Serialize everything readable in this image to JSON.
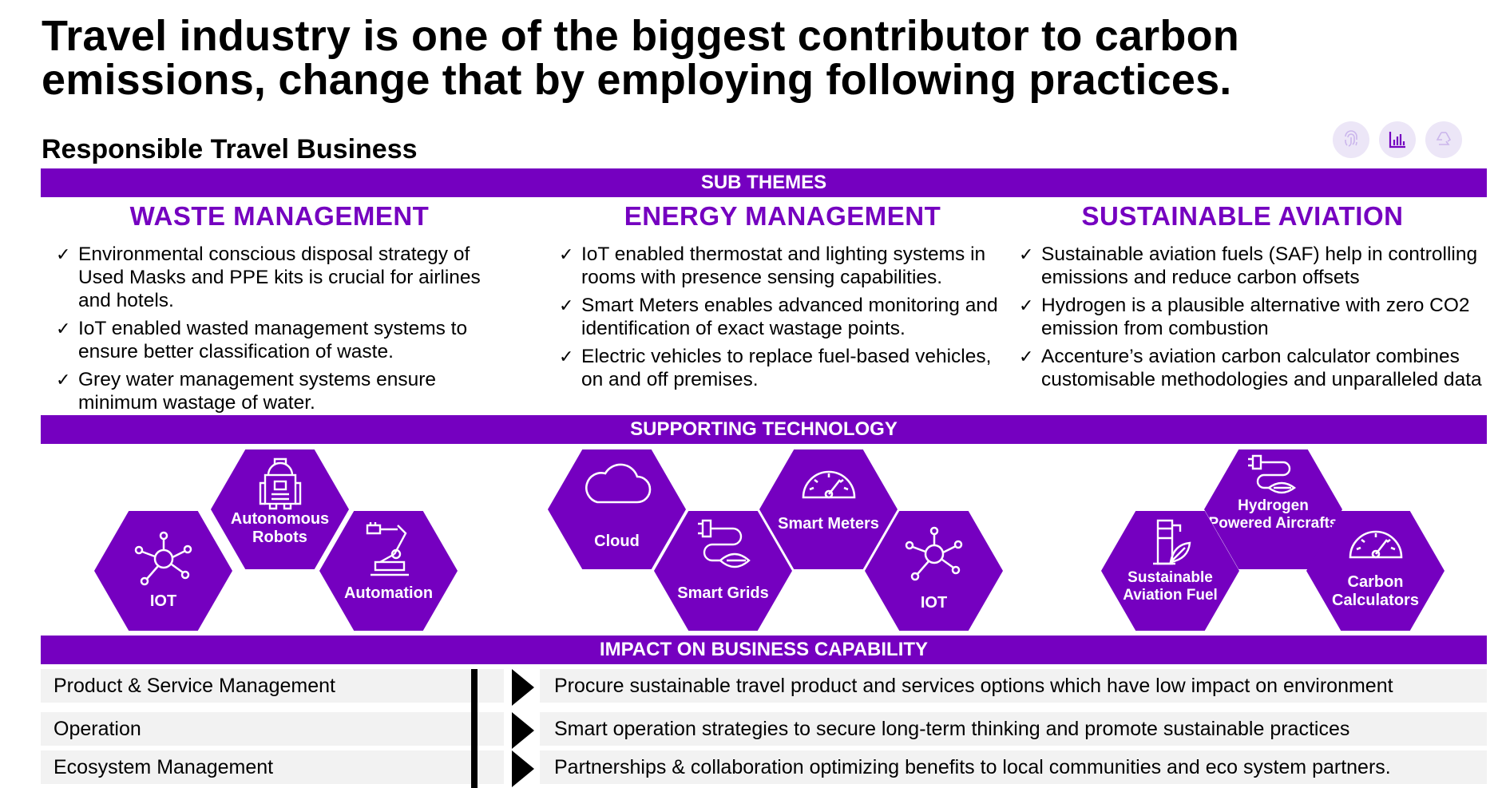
{
  "header": {
    "title_line1": "Travel industry is one of the biggest contributor to carbon",
    "title_line2": "emissions, change that by employing following practices.",
    "section": "Responsible Travel Business"
  },
  "top_icons": [
    "fingerprint-icon",
    "bar-chart-icon",
    "recycle-icon"
  ],
  "colors": {
    "accent": "#7500c0",
    "band_text": "#ffffff",
    "row_bg": "#f2f2f2",
    "icon_bg": "#ece6f7"
  },
  "bands": {
    "sub_themes": "SUB THEMES",
    "supporting_technology": "SUPPORTING TECHNOLOGY",
    "impact": "IMPACT ON BUSINESS CAPABILITY"
  },
  "themes": [
    {
      "title": "WASTE MANAGEMENT",
      "items": [
        "Environmental conscious disposal strategy of Used Masks and PPE kits is crucial for airlines and hotels.",
        "IoT enabled wasted management systems to ensure better classification of waste.",
        "Grey water management systems ensure minimum wastage of water."
      ]
    },
    {
      "title": "ENERGY MANAGEMENT",
      "items": [
        "IoT enabled thermostat and lighting systems in rooms with presence sensing capabilities.",
        "Smart Meters enables advanced monitoring and identification of exact wastage points.",
        "Electric vehicles to replace fuel-based vehicles, on and off premises."
      ]
    },
    {
      "title": "SUSTAINABLE AVIATION",
      "items": [
        "Sustainable aviation fuels (SAF) help in controlling emissions and reduce carbon offsets",
        "Hydrogen is a plausible alternative with zero CO2 emission from combustion",
        "Accenture’s aviation carbon calculator combines customisable methodologies and unparalleled data"
      ]
    }
  ],
  "check_mark": "✓",
  "technologies": {
    "waste": [
      {
        "label": "IOT",
        "icon": "network-hub-icon"
      },
      {
        "label": "Autonomous Robots",
        "icon": "robot-icon"
      },
      {
        "label": "Automation",
        "icon": "robotic-arm-icon"
      }
    ],
    "energy": [
      {
        "label": "Cloud",
        "icon": "cloud-icon"
      },
      {
        "label": "Smart Grids",
        "icon": "plug-leaf-icon"
      },
      {
        "label": "Smart Meters",
        "icon": "gauge-icon"
      },
      {
        "label": "IOT",
        "icon": "network-hub-icon"
      }
    ],
    "aviation": [
      {
        "label": "Sustainable Aviation Fuel",
        "icon": "fuel-leaf-icon"
      },
      {
        "label": "Hydrogen Powered Aircrafts",
        "icon": "plug-leaf-icon"
      },
      {
        "label": "Carbon Calculators",
        "icon": "gauge-icon"
      }
    ]
  },
  "capabilities": [
    {
      "name": "Product & Service Management",
      "impact": "Procure sustainable travel product and services options which have low impact on environment"
    },
    {
      "name": "Operation",
      "impact": "Smart operation strategies to secure long-term thinking and promote sustainable practices"
    },
    {
      "name": "Ecosystem Management",
      "impact": "Partnerships & collaboration optimizing benefits to local communities and eco system partners."
    }
  ]
}
